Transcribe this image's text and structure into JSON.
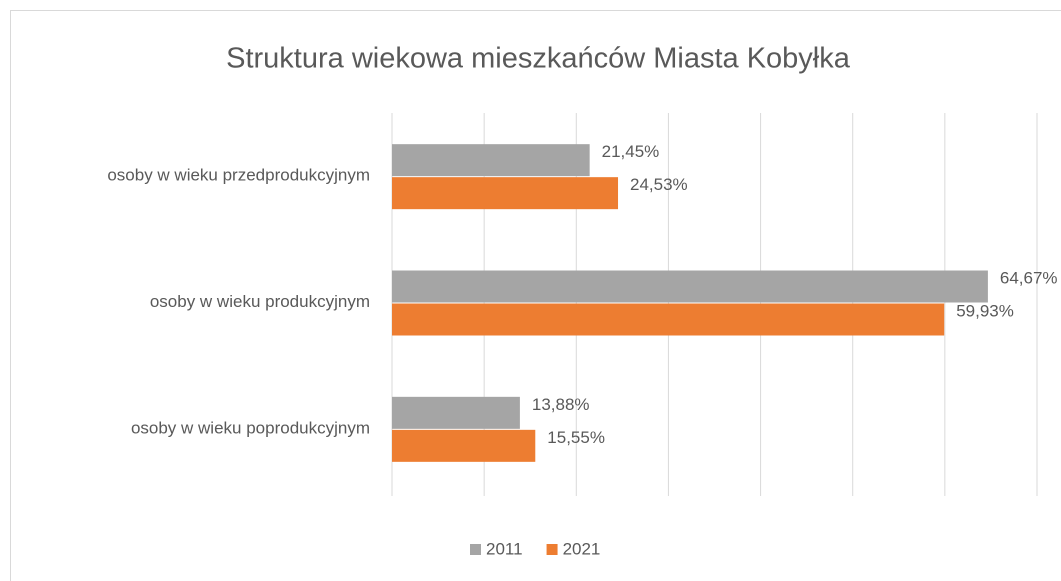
{
  "chart_data": {
    "type": "barh",
    "title": "Struktura wiekowa mieszkańców Miasta Kobyłka",
    "categories": [
      "osoby w wieku przedprodukcyjnym",
      "osoby w wieku produkcyjnym",
      "osoby w wieku poprodukcyjnym"
    ],
    "series": [
      {
        "name": "2011",
        "color": "#a5a5a5",
        "values": [
          21.45,
          64.67,
          13.88
        ],
        "value_labels": [
          "21,45%",
          "64,67%",
          "13,88%"
        ]
      },
      {
        "name": "2021",
        "color": "#ed7d31",
        "values": [
          24.53,
          59.93,
          15.55
        ],
        "value_labels": [
          "24,53%",
          "59,93%",
          "15,55%"
        ]
      }
    ],
    "xlim": [
      0,
      70
    ],
    "xticks": [
      0,
      10,
      20,
      30,
      40,
      50,
      60,
      70
    ],
    "grid": true,
    "legend": "bottom"
  }
}
